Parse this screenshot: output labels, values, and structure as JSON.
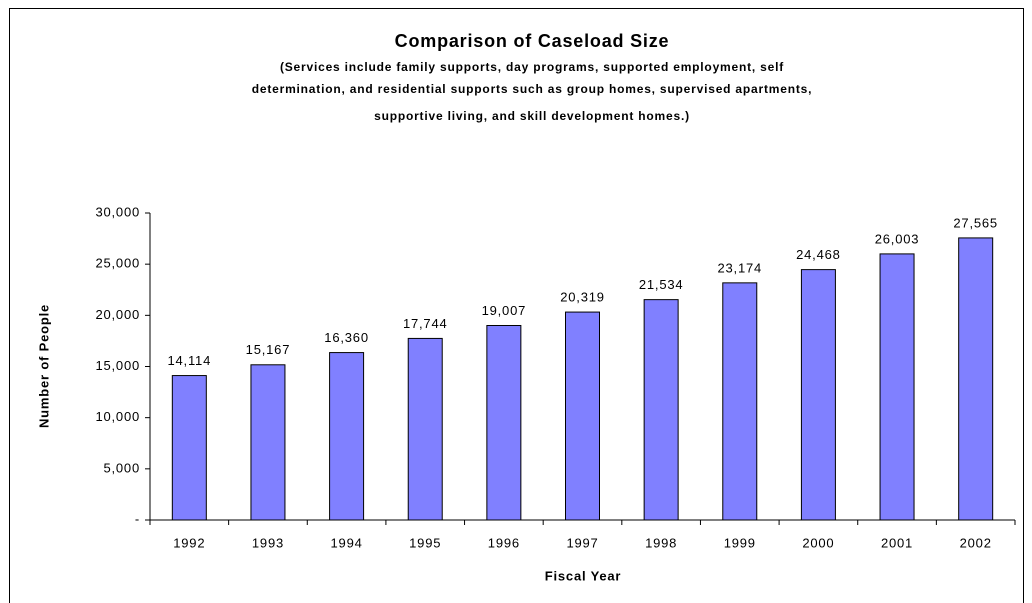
{
  "chart_data": {
    "type": "bar",
    "title": "Comparison of Caseload Size",
    "subtitle": [
      "(Services include family supports, day programs, supported employment, self",
      "determination, and residential supports such as group homes, supervised apartments,",
      "supportive living, and skill development homes.)"
    ],
    "y_label": "Number of People",
    "x_label": "Fiscal Year",
    "categories": [
      "1992",
      "1993",
      "1994",
      "1995",
      "1996",
      "1997",
      "1998",
      "1999",
      "2000",
      "2001",
      "2002"
    ],
    "values": [
      14114,
      15167,
      16360,
      17744,
      19007,
      20319,
      21534,
      23174,
      24468,
      26003,
      27565
    ],
    "value_labels": [
      "14,114",
      "15,167",
      "16,360",
      "17,744",
      "19,007",
      "20,319",
      "21,534",
      "23,174",
      "24,468",
      "26,003",
      "27,565"
    ],
    "color": "#8080ff",
    "ylim": [
      0,
      30000
    ],
    "yticks": [
      {
        "value": 0,
        "label": "-"
      },
      {
        "value": 5000,
        "label": "5,000"
      },
      {
        "value": 10000,
        "label": "10,000"
      },
      {
        "value": 15000,
        "label": "15,000"
      },
      {
        "value": 20000,
        "label": "20,000"
      },
      {
        "value": 25000,
        "label": "25,000"
      },
      {
        "value": 30000,
        "label": "30,000"
      }
    ],
    "grid": false
  }
}
